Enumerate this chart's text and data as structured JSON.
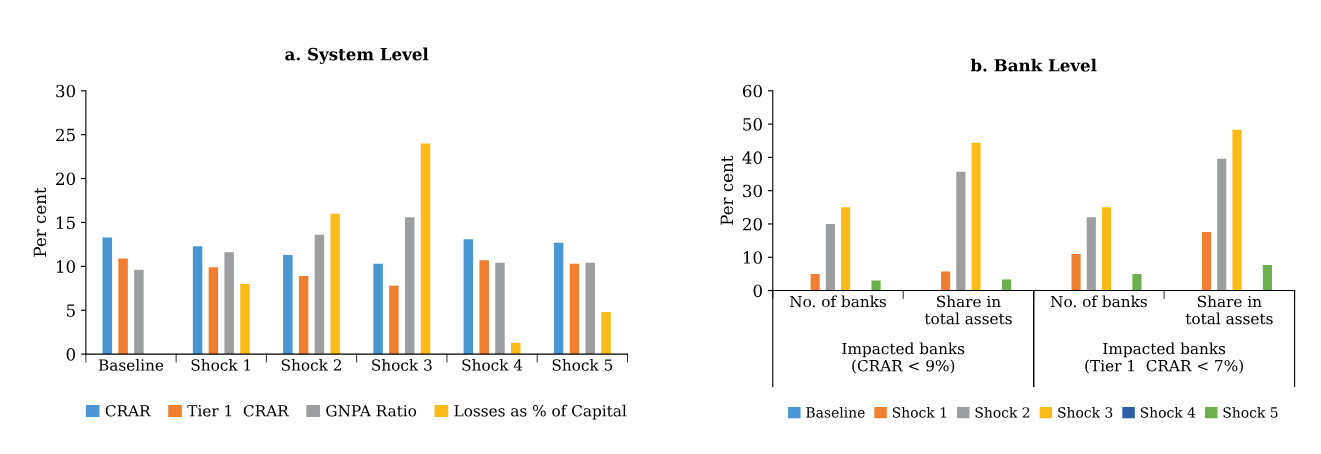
{
  "chart_data": [
    {
      "type": "bar",
      "title": "a. System Level",
      "ylabel": "Per cent",
      "categories": [
        "Baseline",
        "Shock 1",
        "Shock 2",
        "Shock 3",
        "Shock 4",
        "Shock 5"
      ],
      "series": [
        {
          "name": "CRAR",
          "color": "#4a96d2",
          "values": [
            13.3,
            12.3,
            11.3,
            10.3,
            13.1,
            12.7
          ]
        },
        {
          "name": "Tier 1  CRAR",
          "color": "#f07f32",
          "values": [
            10.9,
            9.9,
            8.9,
            7.8,
            10.7,
            10.3
          ]
        },
        {
          "name": "GNPA Ratio",
          "color": "#9d9ea0",
          "values": [
            9.6,
            11.6,
            13.6,
            15.6,
            10.4,
            10.4
          ]
        },
        {
          "name": "Losses as % of Capital",
          "color": "#fdbb18",
          "values": [
            null,
            8.0,
            16.0,
            24.0,
            1.3,
            4.8
          ]
        }
      ],
      "ylim": [
        0,
        30
      ],
      "yticks": [
        0,
        5,
        10,
        15,
        20,
        25,
        30
      ],
      "grid": false,
      "legend": "bottom"
    },
    {
      "type": "bar",
      "title": "b. Bank Level",
      "ylabel": "Per cent",
      "categories": [
        "No. of banks",
        "Share in\ntotal assets",
        "No. of banks",
        "Share in\ntotal assets"
      ],
      "annotations": [
        "Impacted banks\n(CRAR < 9%)",
        "Impacted banks\n(Tier 1  CRAR < 7%)"
      ],
      "series": [
        {
          "name": "Baseline",
          "color": "#4a96d2",
          "values": [
            null,
            null,
            null,
            null
          ]
        },
        {
          "name": "Shock 1",
          "color": "#f07f32",
          "values": [
            5,
            5.7,
            11,
            17.6
          ]
        },
        {
          "name": "Shock 2",
          "color": "#9d9ea0",
          "values": [
            20,
            35.7,
            22,
            39.6
          ]
        },
        {
          "name": "Shock 3",
          "color": "#fdbb18",
          "values": [
            25,
            44.4,
            25,
            48.3
          ]
        },
        {
          "name": "Shock 4",
          "color": "#2f5fa8",
          "values": [
            null,
            null,
            null,
            null
          ]
        },
        {
          "name": "Shock 5",
          "color": "#6ab04c",
          "values": [
            3,
            3.3,
            5,
            7.7
          ]
        }
      ],
      "ylim": [
        0,
        60
      ],
      "yticks": [
        0,
        10,
        20,
        30,
        40,
        50,
        60
      ],
      "grid": false,
      "legend": "bottom"
    }
  ]
}
